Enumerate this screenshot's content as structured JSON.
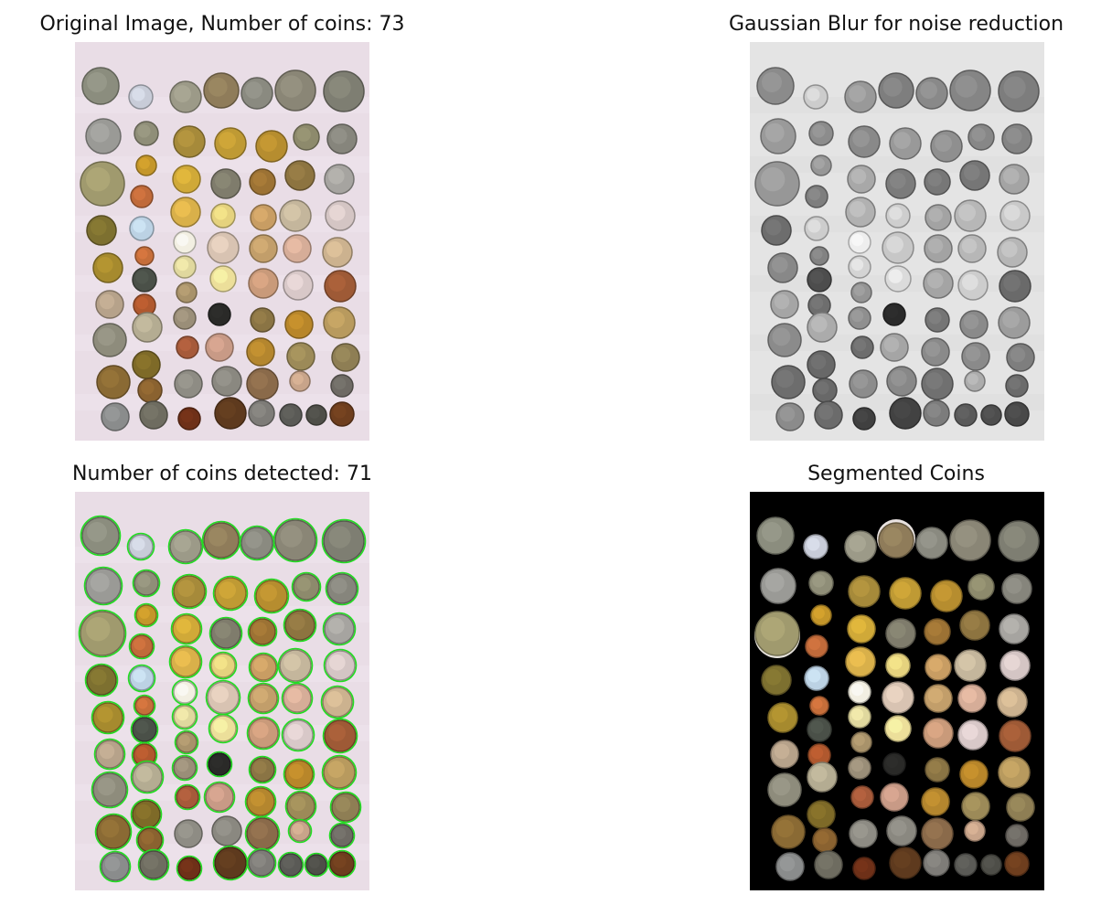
{
  "figure": {
    "panels": [
      {
        "id": "original",
        "title": "Original Image, Number of coins: 73"
      },
      {
        "id": "blur",
        "title": "Gaussian Blur for noise reduction"
      },
      {
        "id": "detected",
        "title": "Number of coins detected: 71"
      },
      {
        "id": "segmented",
        "title": "Segmented Coins"
      }
    ]
  },
  "colors": {
    "figure_background": "#ffffff",
    "photo_background": "#e9dde6",
    "detection_circle": "#22dd22",
    "segmented_background": "#000000"
  }
}
